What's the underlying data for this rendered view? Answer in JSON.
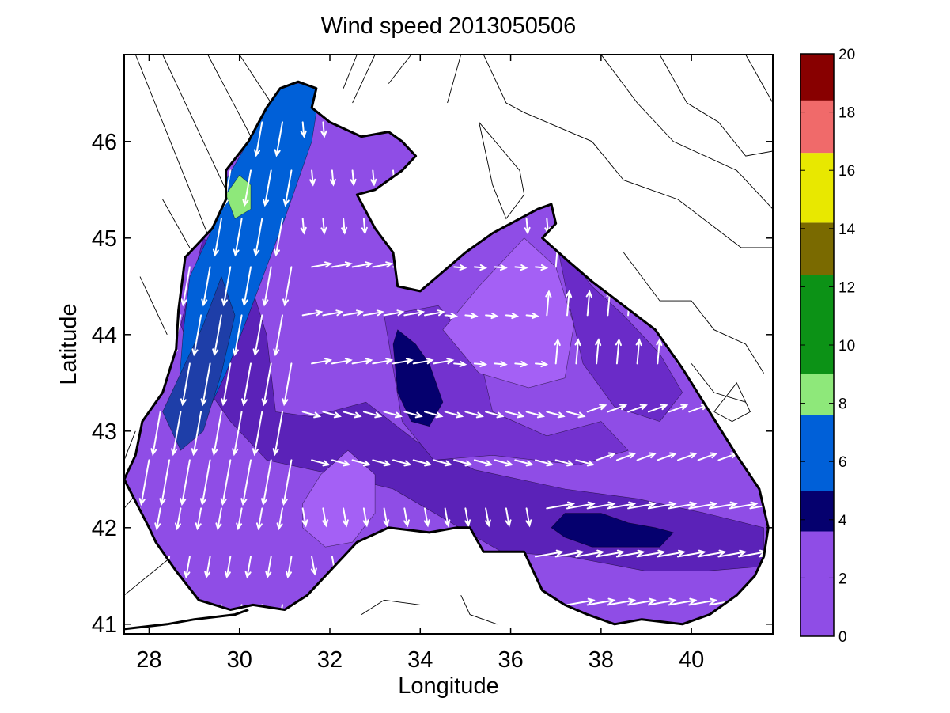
{
  "chart_data": {
    "type": "heatmap",
    "title": "Wind speed 2013050506",
    "xlabel": "Longitude",
    "ylabel": "Latitude",
    "xlim": [
      27.45,
      41.8
    ],
    "ylim": [
      40.9,
      46.9
    ],
    "x_ticks": [
      28,
      30,
      32,
      34,
      36,
      38,
      40
    ],
    "y_ticks": [
      41,
      42,
      43,
      44,
      45,
      46
    ],
    "colorbar": {
      "range": [
        0,
        20
      ],
      "ticks": [
        0,
        2,
        4,
        6,
        8,
        10,
        12,
        14,
        16,
        18,
        20
      ],
      "bands": [
        {
          "from": 0,
          "to": 3.6,
          "color": "#8f4de6"
        },
        {
          "from": 3.6,
          "to": 5.0,
          "color": "#05006e"
        },
        {
          "from": 5.0,
          "to": 7.6,
          "color": "#0060d8"
        },
        {
          "from": 7.6,
          "to": 9.0,
          "color": "#8ee87a"
        },
        {
          "from": 9.0,
          "to": 12.4,
          "color": "#0c9216"
        },
        {
          "from": 12.4,
          "to": 14.2,
          "color": "#7a6a00"
        },
        {
          "from": 14.2,
          "to": 16.6,
          "color": "#e8e800"
        },
        {
          "from": 16.6,
          "to": 18.4,
          "color": "#f06a6a"
        },
        {
          "from": 18.4,
          "to": 20,
          "color": "#880000"
        }
      ]
    },
    "sea_outline": [
      [
        27.45,
        42.5
      ],
      [
        27.7,
        42.75
      ],
      [
        27.85,
        43.1
      ],
      [
        28.3,
        43.4
      ],
      [
        28.6,
        43.85
      ],
      [
        28.65,
        44.25
      ],
      [
        28.8,
        44.8
      ],
      [
        29.4,
        45.1
      ],
      [
        29.7,
        45.4
      ],
      [
        29.7,
        45.7
      ],
      [
        30.2,
        46.0
      ],
      [
        30.6,
        46.35
      ],
      [
        30.9,
        46.55
      ],
      [
        31.3,
        46.62
      ],
      [
        31.7,
        46.55
      ],
      [
        31.6,
        46.35
      ],
      [
        32.0,
        46.2
      ],
      [
        32.7,
        46.05
      ],
      [
        33.3,
        46.1
      ],
      [
        33.6,
        46.0
      ],
      [
        33.9,
        45.85
      ],
      [
        33.6,
        45.7
      ],
      [
        33.0,
        45.5
      ],
      [
        32.6,
        45.45
      ],
      [
        33.0,
        45.1
      ],
      [
        33.4,
        44.85
      ],
      [
        33.5,
        44.5
      ],
      [
        34.0,
        44.45
      ],
      [
        34.5,
        44.65
      ],
      [
        35.0,
        44.85
      ],
      [
        35.6,
        45.05
      ],
      [
        36.2,
        45.2
      ],
      [
        36.6,
        45.3
      ],
      [
        36.9,
        45.35
      ],
      [
        37.0,
        45.15
      ],
      [
        36.7,
        45.0
      ],
      [
        37.3,
        44.75
      ],
      [
        37.8,
        44.55
      ],
      [
        38.5,
        44.3
      ],
      [
        39.2,
        44.05
      ],
      [
        39.8,
        43.65
      ],
      [
        40.4,
        43.2
      ],
      [
        41.0,
        42.75
      ],
      [
        41.5,
        42.4
      ],
      [
        41.7,
        42.0
      ],
      [
        41.6,
        41.7
      ],
      [
        41.4,
        41.5
      ],
      [
        41.0,
        41.3
      ],
      [
        40.4,
        41.1
      ],
      [
        39.8,
        41.0
      ],
      [
        38.9,
        41.05
      ],
      [
        38.3,
        41.0
      ],
      [
        37.7,
        41.1
      ],
      [
        37.2,
        41.2
      ],
      [
        36.7,
        41.35
      ],
      [
        36.3,
        41.75
      ],
      [
        35.9,
        41.75
      ],
      [
        35.4,
        41.75
      ],
      [
        35.1,
        42.0
      ],
      [
        34.8,
        42.0
      ],
      [
        34.2,
        41.95
      ],
      [
        33.3,
        42.0
      ],
      [
        32.6,
        41.85
      ],
      [
        32.1,
        41.6
      ],
      [
        31.5,
        41.3
      ],
      [
        31.0,
        41.15
      ],
      [
        30.3,
        41.2
      ],
      [
        29.8,
        41.15
      ],
      [
        29.1,
        41.25
      ],
      [
        28.6,
        41.55
      ],
      [
        28.15,
        41.85
      ],
      [
        28.0,
        42.0
      ],
      [
        27.45,
        42.5
      ]
    ],
    "outer_coast": [
      [
        27.45,
        40.95
      ],
      [
        28.4,
        41.0
      ],
      [
        29.0,
        41.05
      ],
      [
        29.9,
        41.1
      ],
      [
        30.2,
        41.15
      ]
    ],
    "regions": [
      {
        "name": "dark-band",
        "value": 2.5,
        "color": "#5b22b8",
        "points": [
          [
            29.2,
            45.0
          ],
          [
            30.2,
            44.6
          ],
          [
            30.6,
            44.0
          ],
          [
            30.8,
            43.2
          ],
          [
            31.6,
            43.15
          ],
          [
            32.8,
            43.3
          ],
          [
            33.9,
            42.9
          ],
          [
            35.2,
            42.6
          ],
          [
            37.2,
            42.4
          ],
          [
            38.8,
            42.3
          ],
          [
            40.3,
            42.15
          ],
          [
            41.6,
            42.0
          ],
          [
            41.6,
            41.6
          ],
          [
            40.3,
            41.55
          ],
          [
            39.0,
            41.55
          ],
          [
            37.3,
            41.7
          ],
          [
            35.8,
            41.75
          ],
          [
            34.5,
            42.1
          ],
          [
            33.4,
            42.4
          ],
          [
            32.1,
            42.55
          ],
          [
            30.6,
            42.7
          ],
          [
            29.8,
            43.1
          ],
          [
            29.2,
            43.5
          ],
          [
            28.7,
            44.1
          ]
        ]
      },
      {
        "name": "mid-area-se",
        "value": 2.0,
        "color": "#7332cf",
        "points": [
          [
            33.2,
            44.2
          ],
          [
            34.4,
            44.3
          ],
          [
            35.3,
            43.8
          ],
          [
            35.6,
            43.2
          ],
          [
            36.8,
            42.95
          ],
          [
            38.0,
            43.1
          ],
          [
            38.6,
            42.8
          ],
          [
            37.5,
            42.65
          ],
          [
            35.6,
            42.75
          ],
          [
            34.3,
            42.7
          ],
          [
            33.6,
            43.1
          ]
        ]
      },
      {
        "name": "ne-coastal-band",
        "value": 2.2,
        "color": "#6a2bc8",
        "points": [
          [
            37.0,
            45.0
          ],
          [
            37.8,
            44.5
          ],
          [
            38.5,
            44.2
          ],
          [
            39.3,
            43.8
          ],
          [
            39.8,
            43.4
          ],
          [
            39.3,
            43.1
          ],
          [
            38.3,
            43.25
          ],
          [
            37.6,
            43.7
          ],
          [
            37.3,
            44.3
          ]
        ]
      },
      {
        "name": "light-patch-east",
        "value": 0.8,
        "color": "#a460f5",
        "points": [
          [
            34.5,
            44.05
          ],
          [
            35.3,
            44.5
          ],
          [
            36.3,
            45.0
          ],
          [
            37.0,
            44.7
          ],
          [
            37.4,
            44.1
          ],
          [
            37.2,
            43.55
          ],
          [
            36.4,
            43.45
          ],
          [
            35.3,
            43.6
          ]
        ]
      },
      {
        "name": "light-patch-west",
        "value": 0.8,
        "color": "#a460f5",
        "points": [
          [
            31.4,
            42.25
          ],
          [
            31.8,
            42.55
          ],
          [
            32.4,
            42.8
          ],
          [
            33.0,
            42.55
          ],
          [
            33.0,
            42.15
          ],
          [
            32.5,
            41.85
          ],
          [
            31.9,
            41.8
          ],
          [
            31.4,
            42.0
          ]
        ]
      },
      {
        "name": "blue-nw-strip",
        "value": 5.5,
        "color": "#0060d8",
        "points": [
          [
            28.6,
            43.1
          ],
          [
            28.75,
            44.0
          ],
          [
            28.9,
            44.6
          ],
          [
            29.4,
            45.1
          ],
          [
            29.7,
            45.6
          ],
          [
            30.2,
            46.0
          ],
          [
            30.6,
            46.35
          ],
          [
            30.95,
            46.6
          ],
          [
            31.8,
            46.6
          ],
          [
            31.6,
            46.0
          ],
          [
            31.3,
            45.6
          ],
          [
            31.0,
            45.2
          ],
          [
            30.6,
            44.7
          ],
          [
            30.2,
            44.2
          ],
          [
            29.7,
            43.6
          ],
          [
            29.3,
            43.2
          ],
          [
            28.9,
            42.9
          ]
        ]
      },
      {
        "name": "navy-nw-edge",
        "value": 4.3,
        "color": "#1e3ea8",
        "points": [
          [
            28.3,
            43.2
          ],
          [
            28.7,
            43.6
          ],
          [
            29.2,
            44.1
          ],
          [
            29.6,
            44.6
          ],
          [
            29.9,
            44.2
          ],
          [
            29.6,
            43.6
          ],
          [
            29.2,
            43.0
          ],
          [
            28.7,
            42.8
          ]
        ]
      },
      {
        "name": "green-spot",
        "value": 8.2,
        "color": "#8ee87a",
        "points": [
          [
            29.9,
            45.2
          ],
          [
            29.7,
            45.45
          ],
          [
            30.0,
            45.65
          ],
          [
            30.25,
            45.55
          ],
          [
            30.25,
            45.3
          ]
        ]
      },
      {
        "name": "navy-center",
        "value": 4.2,
        "color": "#05006e",
        "points": [
          [
            33.4,
            43.9
          ],
          [
            33.5,
            44.05
          ],
          [
            33.9,
            43.9
          ],
          [
            34.2,
            43.7
          ],
          [
            34.5,
            43.3
          ],
          [
            34.2,
            43.05
          ],
          [
            33.8,
            43.1
          ],
          [
            33.5,
            43.4
          ]
        ]
      },
      {
        "name": "navy-east",
        "value": 4.2,
        "color": "#05006e",
        "points": [
          [
            36.9,
            42.0
          ],
          [
            37.2,
            42.15
          ],
          [
            38.0,
            42.15
          ],
          [
            38.6,
            42.05
          ],
          [
            39.2,
            42.0
          ],
          [
            39.6,
            41.95
          ],
          [
            39.3,
            41.8
          ],
          [
            38.6,
            41.8
          ],
          [
            37.8,
            41.8
          ],
          [
            37.2,
            41.9
          ]
        ]
      }
    ],
    "contours_land": [
      [
        [
          27.7,
          46.9
        ],
        [
          28.9,
          45.5
        ],
        [
          29.5,
          44.8
        ]
      ],
      [
        [
          28.3,
          46.9
        ],
        [
          29.2,
          46.0
        ],
        [
          30.0,
          45.2
        ]
      ],
      [
        [
          29.3,
          46.9
        ],
        [
          30.2,
          46.1
        ],
        [
          30.8,
          45.5
        ]
      ],
      [
        [
          30.0,
          46.9
        ],
        [
          30.7,
          46.4
        ]
      ],
      [
        [
          28.3,
          45.4
        ],
        [
          28.9,
          44.9
        ]
      ],
      [
        [
          27.8,
          44.6
        ],
        [
          28.4,
          44.0
        ]
      ],
      [
        [
          32.6,
          46.9
        ],
        [
          32.3,
          46.55
        ]
      ],
      [
        [
          33.0,
          46.9
        ],
        [
          32.5,
          46.4
        ]
      ],
      [
        [
          33.3,
          46.6
        ],
        [
          33.8,
          46.9
        ]
      ],
      [
        [
          34.9,
          46.9
        ],
        [
          34.6,
          46.4
        ]
      ],
      [
        [
          35.4,
          46.9
        ],
        [
          35.9,
          46.4
        ],
        [
          36.3,
          46.3
        ],
        [
          37.8,
          46.0
        ],
        [
          38.5,
          45.6
        ],
        [
          39.7,
          45.4
        ],
        [
          41.1,
          44.9
        ],
        [
          41.8,
          44.9
        ]
      ],
      [
        [
          35.3,
          46.2
        ],
        [
          36.2,
          45.7
        ],
        [
          36.3,
          45.45
        ],
        [
          35.9,
          45.2
        ],
        [
          35.6,
          45.55
        ],
        [
          35.3,
          46.2
        ]
      ],
      [
        [
          38.0,
          46.9
        ],
        [
          38.8,
          46.4
        ],
        [
          39.6,
          46.0
        ],
        [
          41.0,
          45.7
        ],
        [
          41.8,
          45.3
        ]
      ],
      [
        [
          39.3,
          46.9
        ],
        [
          39.9,
          46.4
        ],
        [
          40.6,
          46.2
        ],
        [
          41.2,
          45.85
        ],
        [
          41.8,
          45.9
        ]
      ],
      [
        [
          41.2,
          46.9
        ],
        [
          41.8,
          46.4
        ]
      ],
      [
        [
          38.5,
          44.85
        ],
        [
          39.3,
          44.35
        ],
        [
          40.0,
          44.35
        ],
        [
          40.5,
          44.05
        ],
        [
          41.2,
          43.9
        ],
        [
          41.6,
          43.6
        ]
      ],
      [
        [
          40.0,
          43.7
        ],
        [
          40.5,
          43.4
        ],
        [
          41.2,
          43.3
        ]
      ],
      [
        [
          40.5,
          43.2
        ],
        [
          41.0,
          43.5
        ],
        [
          41.3,
          43.2
        ],
        [
          40.9,
          43.1
        ],
        [
          40.5,
          43.2
        ]
      ],
      [
        [
          34.9,
          41.3
        ],
        [
          35.1,
          41.1
        ],
        [
          35.7,
          41.0
        ]
      ],
      [
        [
          32.7,
          41.1
        ],
        [
          33.2,
          41.25
        ],
        [
          34.0,
          41.2
        ]
      ],
      [
        [
          27.45,
          42.7
        ],
        [
          27.7,
          43.0
        ]
      ],
      [
        [
          27.45,
          41.3
        ],
        [
          28.5,
          41.7
        ]
      ],
      [
        [
          27.45,
          42.2
        ],
        [
          27.8,
          42.4
        ]
      ]
    ],
    "arrow_grid": {
      "lon_start": 27.8,
      "lon_step": 0.45,
      "lat_start": 41.2,
      "lat_step": 0.5
    }
  }
}
